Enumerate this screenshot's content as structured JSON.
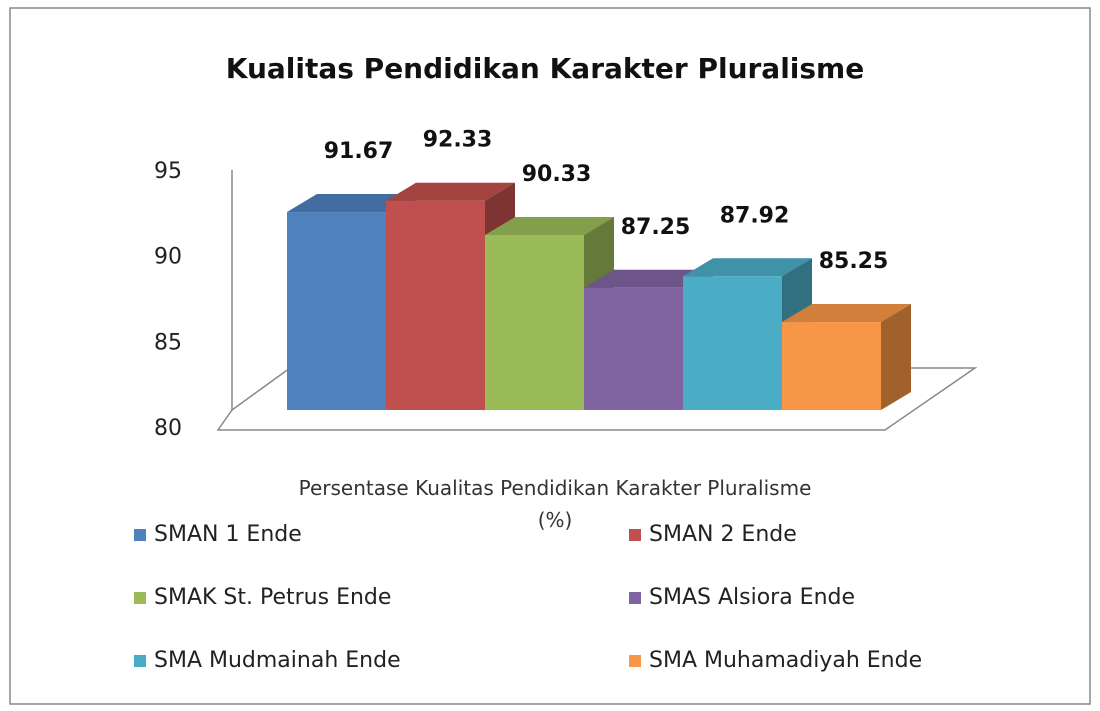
{
  "chart_data": {
    "type": "bar3d",
    "title": "Kualitas Pendidikan Karakter Pluralisme",
    "categories": [
      "Persentase Kualitas Pendidikan Karakter Pluralisme (%)"
    ],
    "series": [
      {
        "name": "SMAN 1 Ende",
        "color": "#4f81bd",
        "values": [
          91.67
        ]
      },
      {
        "name": "SMAN 2 Ende",
        "color": "#c0504d",
        "values": [
          92.33
        ]
      },
      {
        "name": "SMAK St. Petrus Ende",
        "color": "#9bbb59",
        "values": [
          90.33
        ]
      },
      {
        "name": "SMAS Alsiora Ende",
        "color": "#8064a2",
        "values": [
          87.25
        ]
      },
      {
        "name": "SMA Mudmainah Ende",
        "color": "#4bacc6",
        "values": [
          87.92
        ]
      },
      {
        "name": "SMA Muhamadiyah Ende",
        "color": "#f79646",
        "values": [
          85.25
        ]
      }
    ],
    "ylim": [
      80,
      95
    ],
    "yticks": [
      80,
      85,
      90,
      95
    ],
    "legend": "bottom"
  }
}
